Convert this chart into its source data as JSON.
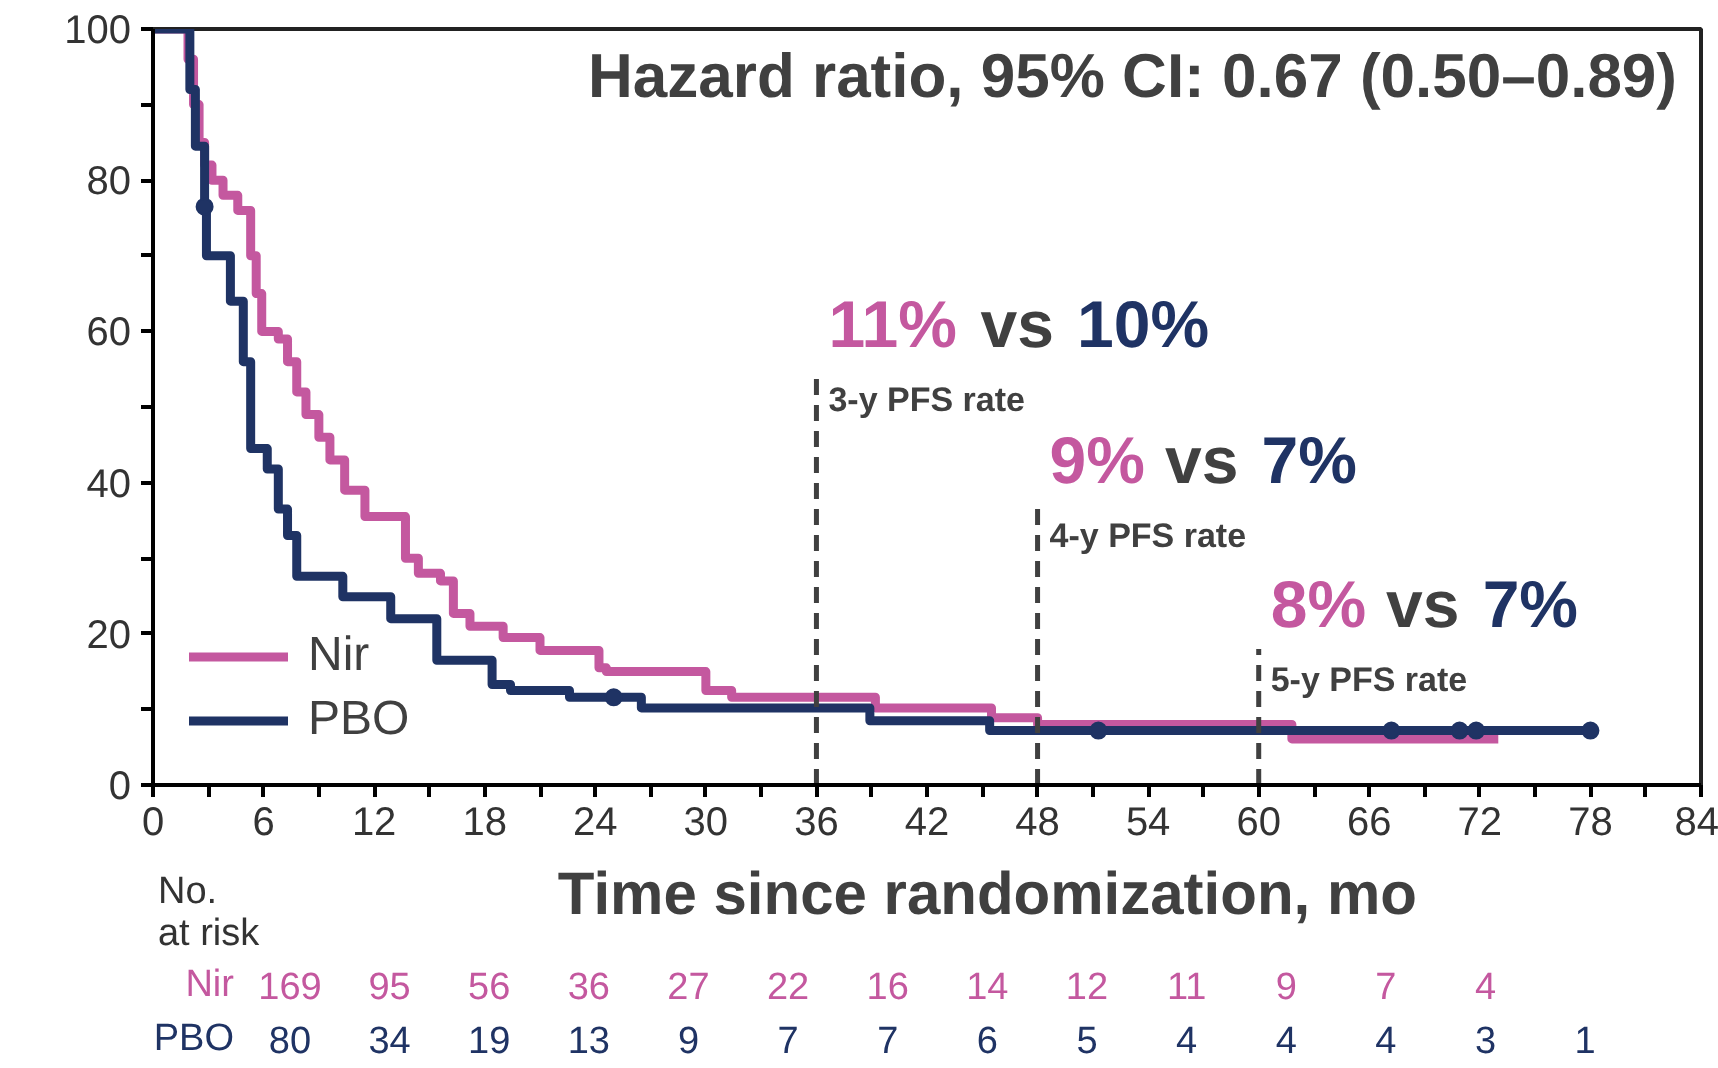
{
  "chart_data": {
    "type": "step",
    "xlabel": "Time since randomization, mo",
    "xlim": [
      0,
      84
    ],
    "xticks": [
      0,
      {
        "value": 3,
        "label": null
      },
      6,
      {
        "value": 9,
        "label": null
      },
      12,
      {
        "value": 15,
        "label": null
      },
      18,
      {
        "value": 21,
        "label": null
      },
      24,
      {
        "value": 27,
        "label": null
      },
      30,
      {
        "value": 33,
        "label": null
      },
      36,
      {
        "value": 39,
        "label": null
      },
      42,
      {
        "value": 45,
        "label": null
      },
      48,
      {
        "value": 51,
        "label": null
      },
      54,
      {
        "value": 57,
        "label": null
      },
      60,
      {
        "value": 63,
        "label": null
      },
      66,
      {
        "value": 69,
        "label": null
      },
      72,
      {
        "value": 75,
        "label": null
      },
      78,
      {
        "value": 81,
        "label": null
      },
      84
    ],
    "ylim": [
      0,
      100
    ],
    "yticks": [
      0,
      {
        "value": 10,
        "label": null
      },
      20,
      {
        "value": 30,
        "label": null
      },
      40,
      {
        "value": 50,
        "label": null
      },
      60,
      {
        "value": 70,
        "label": null
      },
      80,
      {
        "value": 90,
        "label": null
      },
      100
    ],
    "grid": false,
    "legend": "bottom left",
    "series": [
      {
        "name": "Nir",
        "color": "#c4589f",
        "x": [
          0,
          1.9,
          2.2,
          2.5,
          2.8,
          3.2,
          3.8,
          4.6,
          5.3,
          5.6,
          5.9,
          6.8,
          7.3,
          7.8,
          8.3,
          9.0,
          9.6,
          10.4,
          11.5,
          13.7,
          14.4,
          15.6,
          16.3,
          17.2,
          19.0,
          21.0,
          24.2,
          24.6,
          29.5,
          30.0,
          31.4,
          39.2,
          45.5,
          48.0,
          61.8,
          73.0
        ],
        "values": [
          100,
          96,
          90,
          85,
          82,
          80,
          78,
          76,
          70,
          65,
          60,
          59,
          56,
          52,
          49,
          46,
          43,
          39,
          35.5,
          30,
          28,
          27,
          22.7,
          21,
          19.5,
          17.8,
          15.5,
          15,
          15,
          12.5,
          11.6,
          10.2,
          8.9,
          8,
          6.1,
          6.1
        ]
      },
      {
        "name": "PBO",
        "color": "#1f3364",
        "x": [
          0,
          1.5,
          2.0,
          2.3,
          2.8,
          2.9,
          4.2,
          4.9,
          5.3,
          6.2,
          6.8,
          7.3,
          7.8,
          10.3,
          12.9,
          15.4,
          18.4,
          19.4,
          22.6,
          26.5,
          38.9,
          45.4,
          78.0
        ],
        "values": [
          100,
          100,
          92,
          84.5,
          76.5,
          70,
          64,
          56,
          44.5,
          41.8,
          36.5,
          33,
          27.6,
          24.9,
          22,
          16.5,
          13.3,
          12.5,
          11.6,
          10.2,
          8.5,
          7.2,
          7.2
        ]
      },
      {
        "type": "scatter",
        "color": "#1f3364",
        "x": [
          2.8,
          25.0,
          51.3,
          67.2,
          70.9,
          71.8,
          78.0
        ],
        "values": [
          76.5,
          11.6,
          7.2,
          7.2,
          7.2,
          7.2,
          7.2
        ]
      }
    ],
    "ref_lines": [
      {
        "axis": "x",
        "value": 36,
        "label": "3-y PFS rate",
        "line_style": "dashed",
        "color": "#404040"
      },
      {
        "axis": "x",
        "value": 48,
        "label": "4-y PFS rate",
        "line_style": "dashed",
        "color": "#404040"
      },
      {
        "axis": "x",
        "value": 60,
        "label": "5-y PFS rate",
        "line_style": "dashed",
        "color": "#404040"
      }
    ],
    "annotations": [
      "Hazard ratio, 95% CI: 0.67 (0.50–0.89)",
      {
        "text": "11% vs 10%",
        "x": 36,
        "y": 55
      },
      {
        "text": "9% vs 7%",
        "x": 48,
        "y": 37
      },
      {
        "text": "8% vs 7%",
        "x": 60,
        "y": 18
      },
      "No.\nat risk",
      "169 95 56 36 27 22 16 14 12 11 9 7 4",
      "80 34 19 13 9 7 7 6 5 4 4 4 3 1"
    ]
  }
}
